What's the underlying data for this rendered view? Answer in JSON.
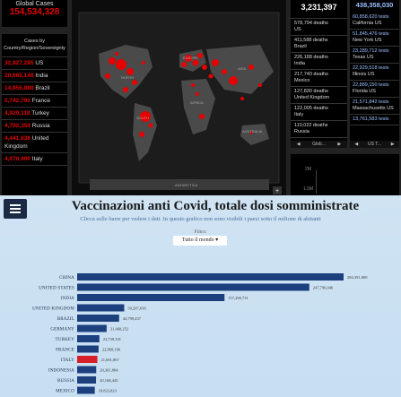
{
  "dashboard": {
    "global_label": "Global Cases",
    "global_value": "154,534,328",
    "cases_header": "Cases by Country/Region/Sovereignty",
    "cases": [
      {
        "value": "32,827,295",
        "place": "US"
      },
      {
        "value": "20,665,148",
        "place": "India"
      },
      {
        "value": "14,856,888",
        "place": "Brazil"
      },
      {
        "value": "5,742,792",
        "place": "France"
      },
      {
        "value": "4,929,118",
        "place": "Turkey"
      },
      {
        "value": "4,792,354",
        "place": "Russia"
      },
      {
        "value": "4,441,638",
        "place": "United Kingdom"
      },
      {
        "value": "4,070,400",
        "place": "Italy"
      }
    ],
    "deaths_total": "3,231,397",
    "deaths": [
      {
        "value": "578,794 deaths",
        "place": "US"
      },
      {
        "value": "411,588 deaths",
        "place": "Brazil"
      },
      {
        "value": "226,188 deaths",
        "place": "India"
      },
      {
        "value": "217,740 deaths",
        "place": "Mexico"
      },
      {
        "value": "127,830 deaths",
        "place": "United Kingdom"
      },
      {
        "value": "122,005 deaths",
        "place": "Italy"
      },
      {
        "value": "110,022 deaths",
        "place": "Russia"
      }
    ],
    "deaths_nav": "Glob...",
    "tests_total": "438,358,030",
    "tests": [
      {
        "value": "60,858,620 tests",
        "place": "California US"
      },
      {
        "value": "51,845,476 tests",
        "place": "New York US"
      },
      {
        "value": "23,289,712 tests",
        "place": "Texas US"
      },
      {
        "value": "22,929,518 tests",
        "place": "Illinois US"
      },
      {
        "value": "22,889,150 tests",
        "place": "Florida US"
      },
      {
        "value": "21,571,842 tests",
        "place": "Massachusetts US"
      },
      {
        "value": "13,761,583 tests",
        "place": ""
      }
    ],
    "tests_nav": "US T...",
    "mini_ticks": [
      "2M",
      "1.5M"
    ],
    "map_labels": {
      "north": "NORTH",
      "south": "SOUTH",
      "europe": "EUROPE",
      "africa": "AFRICA",
      "asia": "ASIA",
      "australia": "AUSTRALIA",
      "antarctica": "ANTARCTICA"
    },
    "zoom_plus": "+",
    "colors": {
      "red": "#e60000",
      "blue": "#9ec1ff",
      "panel": "#000000"
    }
  },
  "vacc": {
    "title": "Vaccinazioni anti Covid, totale dosi somministrate",
    "subtitle": "Clicca sulle barre per vedere i dati. In questo grafico non sono visibili i paesi sotto il milione di abitanti",
    "filter_label": "Filtro:",
    "filter_value": "Tutto il mondo"
  },
  "chart_data": {
    "type": "bar",
    "orientation": "horizontal",
    "categories": [
      "CHINA",
      "UNITED STATES",
      "INDIA",
      "UNITED KINGDOM",
      "BRAZIL",
      "GERMANY",
      "TURKEY",
      "FRANCE",
      "ITALY",
      "INDONESIA",
      "RUSSIA",
      "MEXICO"
    ],
    "values": [
      284391000,
      247796046,
      157290731,
      50207818,
      44799437,
      31468252,
      23739101,
      22868186,
      21601867,
      20361804,
      20168443,
      18823823
    ],
    "labels": [
      "284,391,000",
      "247,796,046",
      "157,290,731",
      "50,207,818",
      "44,799,437",
      "31,468,252",
      "23,739,101",
      "22,868,186",
      "21,601,867",
      "20,361,804",
      "20,168,443",
      "18,823,823"
    ],
    "highlight": "ITALY",
    "bar_color": "#1c3f7e",
    "highlight_color": "#d62027"
  }
}
